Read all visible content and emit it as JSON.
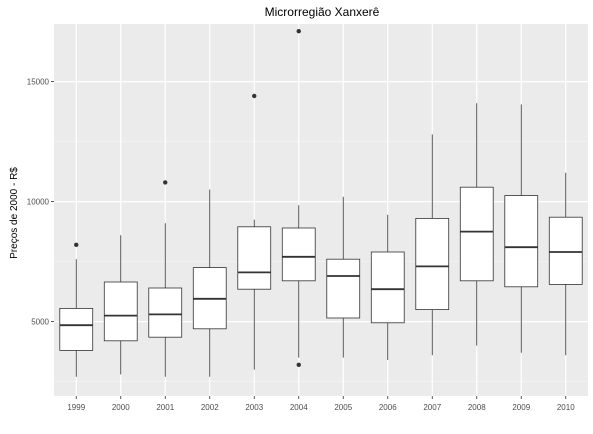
{
  "chart_data": {
    "type": "boxplot",
    "title": "Microrregião  Xanxerê",
    "xlabel": "",
    "ylabel": "Preços de 2000 - R$",
    "ylim": [
      1900,
      17400
    ],
    "yticks": [
      5000,
      10000,
      15000
    ],
    "ytick_labels": [
      "5000",
      "10000",
      "15000"
    ],
    "grid": true,
    "background": "#ebebeb",
    "box_fill": "#ffffff",
    "line_color": "#333333",
    "categories": [
      "1999",
      "2000",
      "2001",
      "2002",
      "2003",
      "2004",
      "2005",
      "2006",
      "2007",
      "2008",
      "2009",
      "2010"
    ],
    "boxes": [
      {
        "whisker_low": 2700,
        "q1": 3800,
        "median": 4850,
        "q3": 5550,
        "whisker_high": 7600,
        "outliers": [
          8200
        ]
      },
      {
        "whisker_low": 2800,
        "q1": 4200,
        "median": 5250,
        "q3": 6650,
        "whisker_high": 8600,
        "outliers": []
      },
      {
        "whisker_low": 2700,
        "q1": 4350,
        "median": 5300,
        "q3": 6400,
        "whisker_high": 9100,
        "outliers": [
          10800
        ]
      },
      {
        "whisker_low": 2700,
        "q1": 4700,
        "median": 5950,
        "q3": 7250,
        "whisker_high": 10500,
        "outliers": []
      },
      {
        "whisker_low": 3000,
        "q1": 6350,
        "median": 7050,
        "q3": 8950,
        "whisker_high": 9250,
        "outliers": [
          14400
        ]
      },
      {
        "whisker_low": 3500,
        "q1": 6700,
        "median": 7700,
        "q3": 8900,
        "whisker_high": 9850,
        "outliers": [
          3200,
          17100
        ]
      },
      {
        "whisker_low": 3500,
        "q1": 5150,
        "median": 6900,
        "q3": 7600,
        "whisker_high": 10200,
        "outliers": []
      },
      {
        "whisker_low": 3400,
        "q1": 4950,
        "median": 6350,
        "q3": 7900,
        "whisker_high": 9450,
        "outliers": []
      },
      {
        "whisker_low": 3600,
        "q1": 5500,
        "median": 7300,
        "q3": 9300,
        "whisker_high": 12800,
        "outliers": []
      },
      {
        "whisker_low": 4000,
        "q1": 6700,
        "median": 8750,
        "q3": 10600,
        "whisker_high": 14100,
        "outliers": []
      },
      {
        "whisker_low": 3700,
        "q1": 6450,
        "median": 8100,
        "q3": 10250,
        "whisker_high": 14050,
        "outliers": []
      },
      {
        "whisker_low": 3600,
        "q1": 6550,
        "median": 7900,
        "q3": 9350,
        "whisker_high": 11200,
        "outliers": []
      }
    ]
  }
}
